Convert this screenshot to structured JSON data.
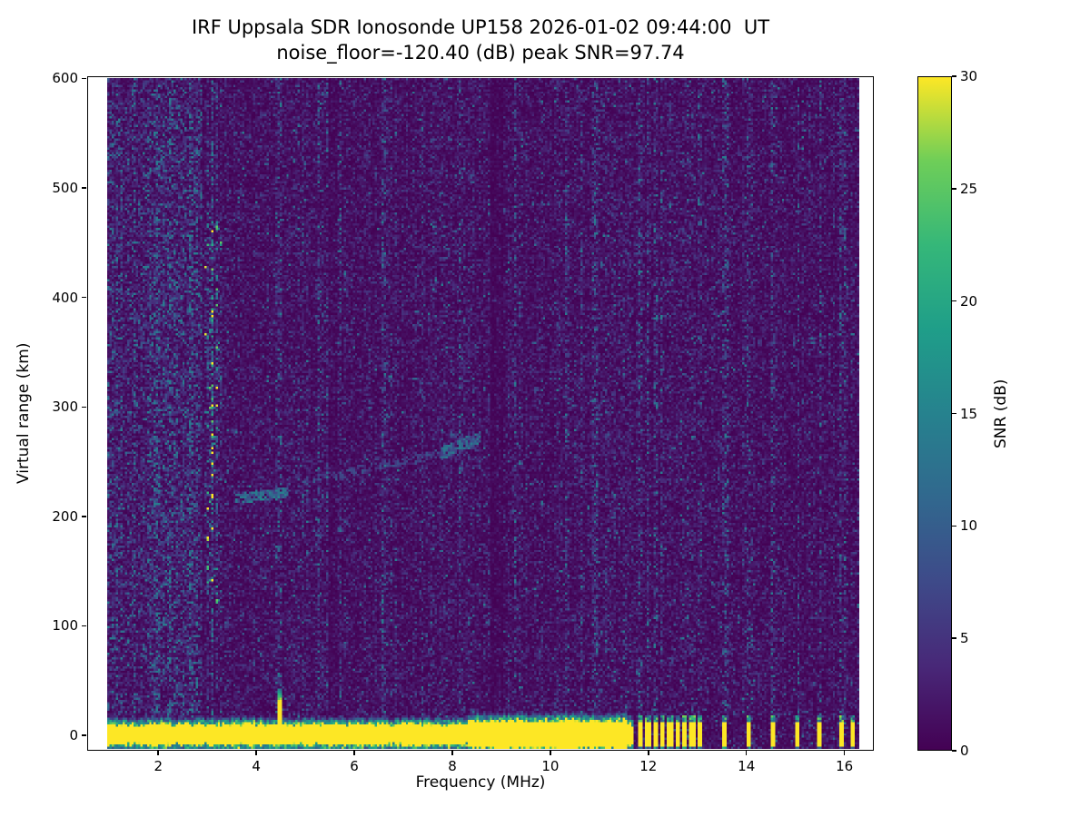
{
  "chart_data": {
    "type": "heatmap",
    "title": "IRF Uppsala SDR Ionosonde UP158 2026-01-02 09:44:00  UT",
    "subtitle": "noise_floor=-120.40 (dB) peak SNR=97.74",
    "xlabel": "Frequency (MHz)",
    "ylabel": "Virtual range (km)",
    "noise_floor_db": -120.4,
    "peak_snr_db": 97.74,
    "xlim": [
      0.55,
      16.6
    ],
    "ylim": [
      -14,
      602
    ],
    "xticks": [
      2,
      4,
      6,
      8,
      10,
      12,
      14,
      16
    ],
    "yticks": [
      0,
      100,
      200,
      300,
      400,
      500,
      600
    ],
    "extent": {
      "f": [
        0.95,
        16.3
      ],
      "r": [
        -12.5,
        600
      ]
    },
    "colorbar": {
      "label": "SNR (dB)",
      "ticks": [
        0,
        5,
        10,
        15,
        20,
        25,
        30
      ],
      "range": [
        0,
        30
      ],
      "colormap": "viridis",
      "stops": [
        [
          0.0,
          68,
          1,
          84
        ],
        [
          0.125,
          72,
          40,
          120
        ],
        [
          0.25,
          62,
          74,
          137
        ],
        [
          0.375,
          49,
          104,
          142
        ],
        [
          0.5,
          38,
          130,
          142
        ],
        [
          0.625,
          31,
          158,
          137
        ],
        [
          0.75,
          53,
          183,
          121
        ],
        [
          0.875,
          110,
          206,
          88
        ],
        [
          1.0,
          253,
          231,
          37
        ]
      ]
    },
    "features": {
      "background_snr_mean": 2.0,
      "low_freq_noise": {
        "f_max": 2.9,
        "gain": 1.9
      },
      "mid_noise_column": {
        "f": [
          2.95,
          3.3
        ],
        "gain": 1.5,
        "r": [
          120,
          470
        ]
      },
      "dark_columns": [
        {
          "f": 8.9,
          "w": 0.15,
          "gain": 0.4
        },
        {
          "f": 5.55,
          "w": 0.08,
          "gain": 0.65
        }
      ],
      "interference_stripes": [
        {
          "f": 3.1,
          "gain": 2.0
        },
        {
          "f": 4.46,
          "gain": 1.7
        },
        {
          "f": 5.25,
          "gain": 1.35
        },
        {
          "f": 8.2,
          "gain": 1.3
        },
        {
          "f": 10.35,
          "gain": 1.5
        },
        {
          "f": 10.9,
          "gain": 1.35
        },
        {
          "f": 11.84,
          "gain": 1.7
        },
        {
          "f": 12.14,
          "gain": 1.5
        },
        {
          "f": 12.44,
          "gain": 1.7
        },
        {
          "f": 12.74,
          "gain": 1.5
        },
        {
          "f": 13.04,
          "gain": 1.6
        },
        {
          "f": 13.55,
          "gain": 1.8
        },
        {
          "f": 14.05,
          "gain": 1.7
        },
        {
          "f": 14.55,
          "gain": 1.8
        },
        {
          "f": 15.05,
          "gain": 1.6
        },
        {
          "f": 15.5,
          "gain": 1.6
        },
        {
          "f": 15.95,
          "gain": 1.7
        },
        {
          "f": 16.15,
          "gain": 1.5
        }
      ],
      "ground_return": {
        "f": [
          0.95,
          11.7
        ],
        "r_sat": 7.5,
        "r_fringe": 15,
        "thick_f": [
          8.3,
          11.55
        ],
        "thick_r_sat": 10.5,
        "thick_r_fringe": 19
      },
      "underband_dashes": {
        "f": [
          0.95,
          11.7
        ],
        "r": [
          -13.5,
          -10.5
        ],
        "density": 0.25,
        "snr": [
          7,
          14
        ]
      },
      "transmitter_spike": {
        "f": 4.46,
        "w": 0.05,
        "r_top": 42
      },
      "station_bars": {
        "freqs": [
          11.84,
          11.99,
          12.14,
          12.29,
          12.44,
          12.59,
          12.74,
          12.89,
          13.04,
          13.55,
          14.05,
          14.55,
          15.05,
          15.5,
          15.95,
          16.15
        ],
        "half_width": 0.05,
        "r": [
          -11,
          13
        ]
      },
      "echo_traces": [
        {
          "f0": 3.55,
          "r0": 216,
          "f1": 4.65,
          "r1": 222,
          "w": 5,
          "snr": 11,
          "density": 0.85
        },
        {
          "f0": 4.95,
          "r0": 231,
          "f1": 7.75,
          "r1": 257,
          "w": 4,
          "snr": 6,
          "density": 0.5
        },
        {
          "f0": 7.75,
          "r0": 257,
          "f1": 8.6,
          "r1": 273,
          "w": 6,
          "snr": 10,
          "density": 0.8
        },
        {
          "f0": 7.95,
          "r0": 274,
          "f1": 8.55,
          "r1": 262,
          "w": 4,
          "snr": 7,
          "density": 0.45
        },
        {
          "f0": 1.1,
          "r0": 420,
          "f1": 1.5,
          "r1": 600,
          "w": 7,
          "snr": 6,
          "density": 0.35
        },
        {
          "f0": 1.45,
          "r0": 470,
          "f1": 1.8,
          "r1": 600,
          "w": 6,
          "snr": 5,
          "density": 0.3
        },
        {
          "f0": 1.25,
          "r0": 300,
          "f1": 1.05,
          "r1": 160,
          "w": 6,
          "snr": 4,
          "density": 0.3
        }
      ]
    }
  }
}
